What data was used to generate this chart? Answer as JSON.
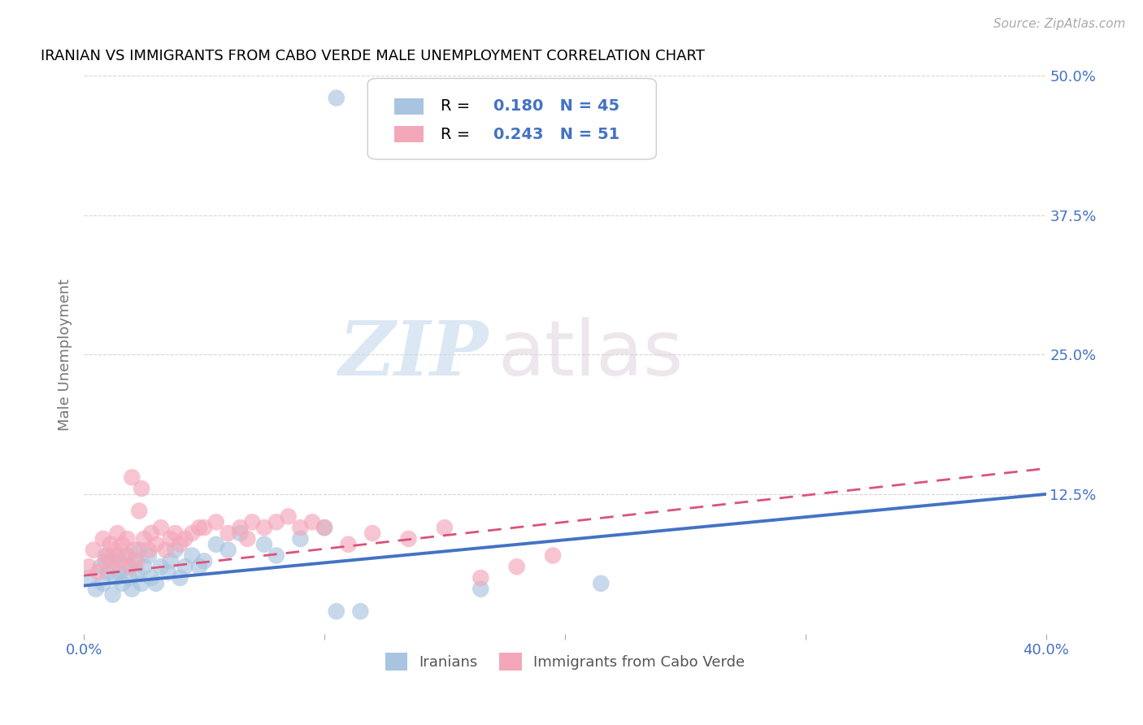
{
  "title": "IRANIAN VS IMMIGRANTS FROM CABO VERDE MALE UNEMPLOYMENT CORRELATION CHART",
  "source": "Source: ZipAtlas.com",
  "ylabel": "Male Unemployment",
  "xlim": [
    0.0,
    0.4
  ],
  "ylim": [
    0.0,
    0.5
  ],
  "xticks": [
    0.0,
    0.1,
    0.2,
    0.3,
    0.4
  ],
  "xtick_labels": [
    "0.0%",
    "",
    "",
    "",
    "40.0%"
  ],
  "ytick_labels_right": [
    "50.0%",
    "37.5%",
    "25.0%",
    "12.5%",
    ""
  ],
  "yticks_right": [
    0.5,
    0.375,
    0.25,
    0.125,
    0.0
  ],
  "iranians_color": "#a8c4e0",
  "cabo_verde_color": "#f4a7b9",
  "trendline_iranian_color": "#4472c4",
  "trendline_cabo_verde_color": "#d9547a",
  "R_iranian": 0.18,
  "N_iranian": 45,
  "R_cabo_verde": 0.243,
  "N_cabo_verde": 51,
  "legend_label_1": "Iranians",
  "legend_label_2": "Immigrants from Cabo Verde",
  "watermark_zip": "ZIP",
  "watermark_atlas": "atlas",
  "background_color": "#ffffff",
  "grid_color": "#cccccc",
  "trendline_ir_x0": 0.0,
  "trendline_ir_y0": 0.043,
  "trendline_ir_x1": 0.4,
  "trendline_ir_y1": 0.125,
  "trendline_cv_x0": 0.0,
  "trendline_cv_y0": 0.052,
  "trendline_cv_x1": 0.4,
  "trendline_cv_y1": 0.148,
  "iranians_x": [
    0.002,
    0.005,
    0.007,
    0.008,
    0.009,
    0.01,
    0.011,
    0.012,
    0.013,
    0.014,
    0.015,
    0.016,
    0.017,
    0.018,
    0.019,
    0.02,
    0.021,
    0.022,
    0.023,
    0.024,
    0.025,
    0.027,
    0.028,
    0.03,
    0.032,
    0.035,
    0.036,
    0.038,
    0.04,
    0.042,
    0.045,
    0.048,
    0.05,
    0.055,
    0.06,
    0.065,
    0.075,
    0.08,
    0.09,
    0.1,
    0.105,
    0.115,
    0.105,
    0.165,
    0.215
  ],
  "iranians_y": [
    0.05,
    0.04,
    0.06,
    0.045,
    0.07,
    0.055,
    0.065,
    0.035,
    0.05,
    0.07,
    0.055,
    0.045,
    0.06,
    0.07,
    0.05,
    0.04,
    0.065,
    0.055,
    0.075,
    0.045,
    0.06,
    0.07,
    0.05,
    0.045,
    0.06,
    0.055,
    0.065,
    0.075,
    0.05,
    0.06,
    0.07,
    0.06,
    0.065,
    0.08,
    0.075,
    0.09,
    0.08,
    0.07,
    0.085,
    0.095,
    0.48,
    0.02,
    0.02,
    0.04,
    0.045
  ],
  "cabo_verde_x": [
    0.002,
    0.004,
    0.006,
    0.008,
    0.009,
    0.01,
    0.011,
    0.012,
    0.013,
    0.014,
    0.015,
    0.016,
    0.017,
    0.018,
    0.019,
    0.02,
    0.021,
    0.022,
    0.023,
    0.024,
    0.025,
    0.027,
    0.028,
    0.03,
    0.032,
    0.034,
    0.036,
    0.038,
    0.04,
    0.042,
    0.045,
    0.048,
    0.05,
    0.055,
    0.06,
    0.065,
    0.068,
    0.07,
    0.075,
    0.08,
    0.085,
    0.09,
    0.095,
    0.1,
    0.11,
    0.12,
    0.135,
    0.15,
    0.165,
    0.18,
    0.195
  ],
  "cabo_verde_y": [
    0.06,
    0.075,
    0.055,
    0.085,
    0.065,
    0.07,
    0.08,
    0.06,
    0.075,
    0.09,
    0.065,
    0.08,
    0.07,
    0.085,
    0.06,
    0.14,
    0.075,
    0.065,
    0.11,
    0.13,
    0.085,
    0.075,
    0.09,
    0.08,
    0.095,
    0.075,
    0.085,
    0.09,
    0.08,
    0.085,
    0.09,
    0.095,
    0.095,
    0.1,
    0.09,
    0.095,
    0.085,
    0.1,
    0.095,
    0.1,
    0.105,
    0.095,
    0.1,
    0.095,
    0.08,
    0.09,
    0.085,
    0.095,
    0.05,
    0.06,
    0.07
  ]
}
